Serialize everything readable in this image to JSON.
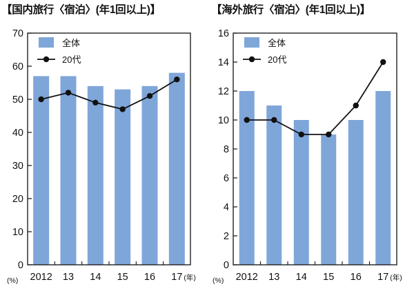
{
  "chart_data": [
    {
      "type": "bar",
      "title": "【国内旅行〈宿泊〉(年1回以上)】",
      "categories": [
        "2012",
        "13",
        "14",
        "15",
        "16",
        "17"
      ],
      "x_unit": "(年)",
      "y_unit": "(%)",
      "ylim": [
        0,
        70
      ],
      "yticks": [
        0,
        10,
        20,
        30,
        40,
        50,
        60,
        70
      ],
      "grid": false,
      "legend_position": "top-left",
      "series": [
        {
          "name": "全体",
          "type": "bar",
          "color": "#7fa6d9",
          "values": [
            57,
            57,
            54,
            53,
            54,
            58
          ]
        },
        {
          "name": "20代",
          "type": "line",
          "color": "#111111",
          "values": [
            50,
            52,
            49,
            47,
            51,
            56
          ]
        }
      ]
    },
    {
      "type": "bar",
      "title": "【海外旅行〈宿泊〉(年1回以上)】",
      "categories": [
        "2012",
        "13",
        "14",
        "15",
        "16",
        "17"
      ],
      "x_unit": "(年)",
      "y_unit": "(%)",
      "ylim": [
        0,
        16
      ],
      "yticks": [
        0,
        2,
        4,
        6,
        8,
        10,
        12,
        14,
        16
      ],
      "grid": false,
      "legend_position": "top-left",
      "series": [
        {
          "name": "全体",
          "type": "bar",
          "color": "#7fa6d9",
          "values": [
            12,
            11,
            10,
            9,
            10,
            12
          ]
        },
        {
          "name": "20代",
          "type": "line",
          "color": "#111111",
          "values": [
            10,
            10,
            9,
            9,
            11,
            14
          ]
        }
      ]
    }
  ]
}
